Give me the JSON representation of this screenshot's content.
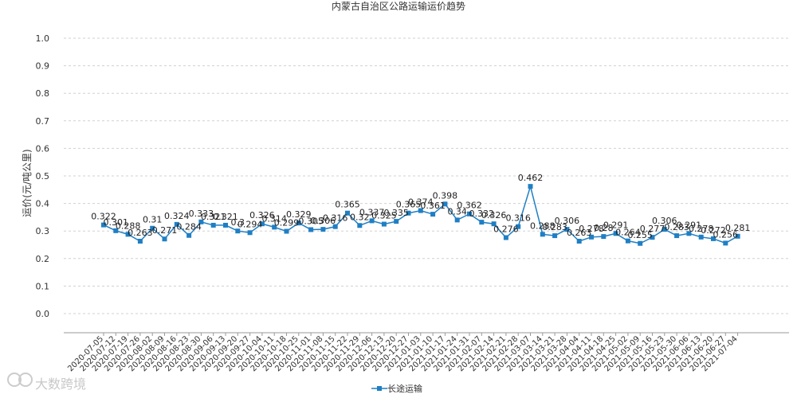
{
  "chart_data": {
    "type": "line",
    "title": "内蒙古自治区公路运输运价趋势",
    "ylabel": "运价(元/吨公里)",
    "ylim": [
      0.0,
      1.0
    ],
    "yticks": [
      "1.0",
      "0.9",
      "0.8",
      "0.7",
      "0.6",
      "0.5",
      "0.4",
      "0.3",
      "0.2",
      "0.1",
      "0.0"
    ],
    "grid": true,
    "legend_position": "bottom",
    "categories": [
      "2020-07-05",
      "2020-07-12",
      "2020-07-19",
      "2020-07-26",
      "2020-08-02",
      "2020-08-09",
      "2020-08-16",
      "2020-08-23",
      "2020-08-30",
      "2020-09-06",
      "2020-09-13",
      "2020-09-20",
      "2020-09-27",
      "2020-10-04",
      "2020-10-11",
      "2020-10-18",
      "2020-10-25",
      "2020-11-01",
      "2020-11-08",
      "2020-11-15",
      "2020-11-22",
      "2020-11-29",
      "2020-12-06",
      "2020-12-13",
      "2020-12-20",
      "2020-12-27",
      "2021-01-03",
      "2021-01-10",
      "2021-01-17",
      "2021-01-24",
      "2021-01-31",
      "2021-02-07",
      "2021-02-14",
      "2021-02-21",
      "2021-02-28",
      "2021-03-07",
      "2021-03-14",
      "2021-03-21",
      "2021-03-28",
      "2021-04-04",
      "2021-04-11",
      "2021-04-18",
      "2021-04-25",
      "2021-05-02",
      "2021-05-09",
      "2021-05-16",
      "2021-05-23",
      "2021-05-30",
      "2021-06-06",
      "2021-06-13",
      "2021-06-20",
      "2021-06-27",
      "2021-07-04"
    ],
    "series": [
      {
        "name": "长途运输",
        "color": "#1f7fc4",
        "values": [
          0.322,
          0.301,
          0.288,
          0.263,
          0.31,
          0.271,
          0.324,
          0.284,
          0.333,
          0.321,
          0.321,
          0.3,
          0.294,
          0.326,
          0.314,
          0.299,
          0.329,
          0.305,
          0.306,
          0.316,
          0.365,
          0.32,
          0.337,
          0.325,
          0.335,
          0.365,
          0.374,
          0.361,
          0.398,
          0.34,
          0.362,
          0.332,
          0.326,
          0.276,
          0.316,
          0.462,
          0.288,
          0.283,
          0.306,
          0.263,
          0.278,
          0.28,
          0.291,
          0.264,
          0.255,
          0.277,
          0.306,
          0.283,
          0.291,
          0.278,
          0.272,
          0.256,
          0.281
        ]
      }
    ]
  },
  "watermark": {
    "text": "大数跨境"
  }
}
